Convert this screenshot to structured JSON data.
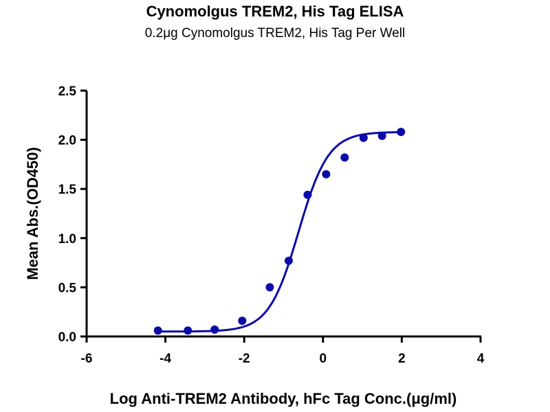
{
  "chart_data": {
    "type": "scatter",
    "title": "Cynomolgus TREM2, His Tag ELISA",
    "subtitle": "0.2μg Cynomolgus TREM2, His Tag Per Well",
    "xlabel": "Log Anti-TREM2 Antibody, hFc Tag Conc.(μg/ml)",
    "ylabel": "Mean Abs.(OD450)",
    "xlim": [
      -6,
      4
    ],
    "ylim": [
      0,
      2.5
    ],
    "xticks": [
      "-6",
      "-4",
      "-2",
      "0",
      "2",
      "4"
    ],
    "yticks": [
      "0.0",
      "0.5",
      "1.0",
      "1.5",
      "2.0",
      "2.5"
    ],
    "grid": false,
    "color": "#0a0aa8",
    "series": [
      {
        "name": "Mean Abs.",
        "x": [
          -4.19,
          -3.43,
          -2.75,
          -2.05,
          -1.35,
          -0.87,
          -0.39,
          0.08,
          0.55,
          1.03,
          1.5,
          1.98
        ],
        "y": [
          0.06,
          0.06,
          0.07,
          0.16,
          0.5,
          0.77,
          1.44,
          1.65,
          1.82,
          2.02,
          2.04,
          2.08
        ]
      }
    ],
    "fit": {
      "model": "4PL",
      "bottom": 0.05,
      "top": 2.08,
      "logEC50": -0.62,
      "hill": 1.15
    }
  }
}
